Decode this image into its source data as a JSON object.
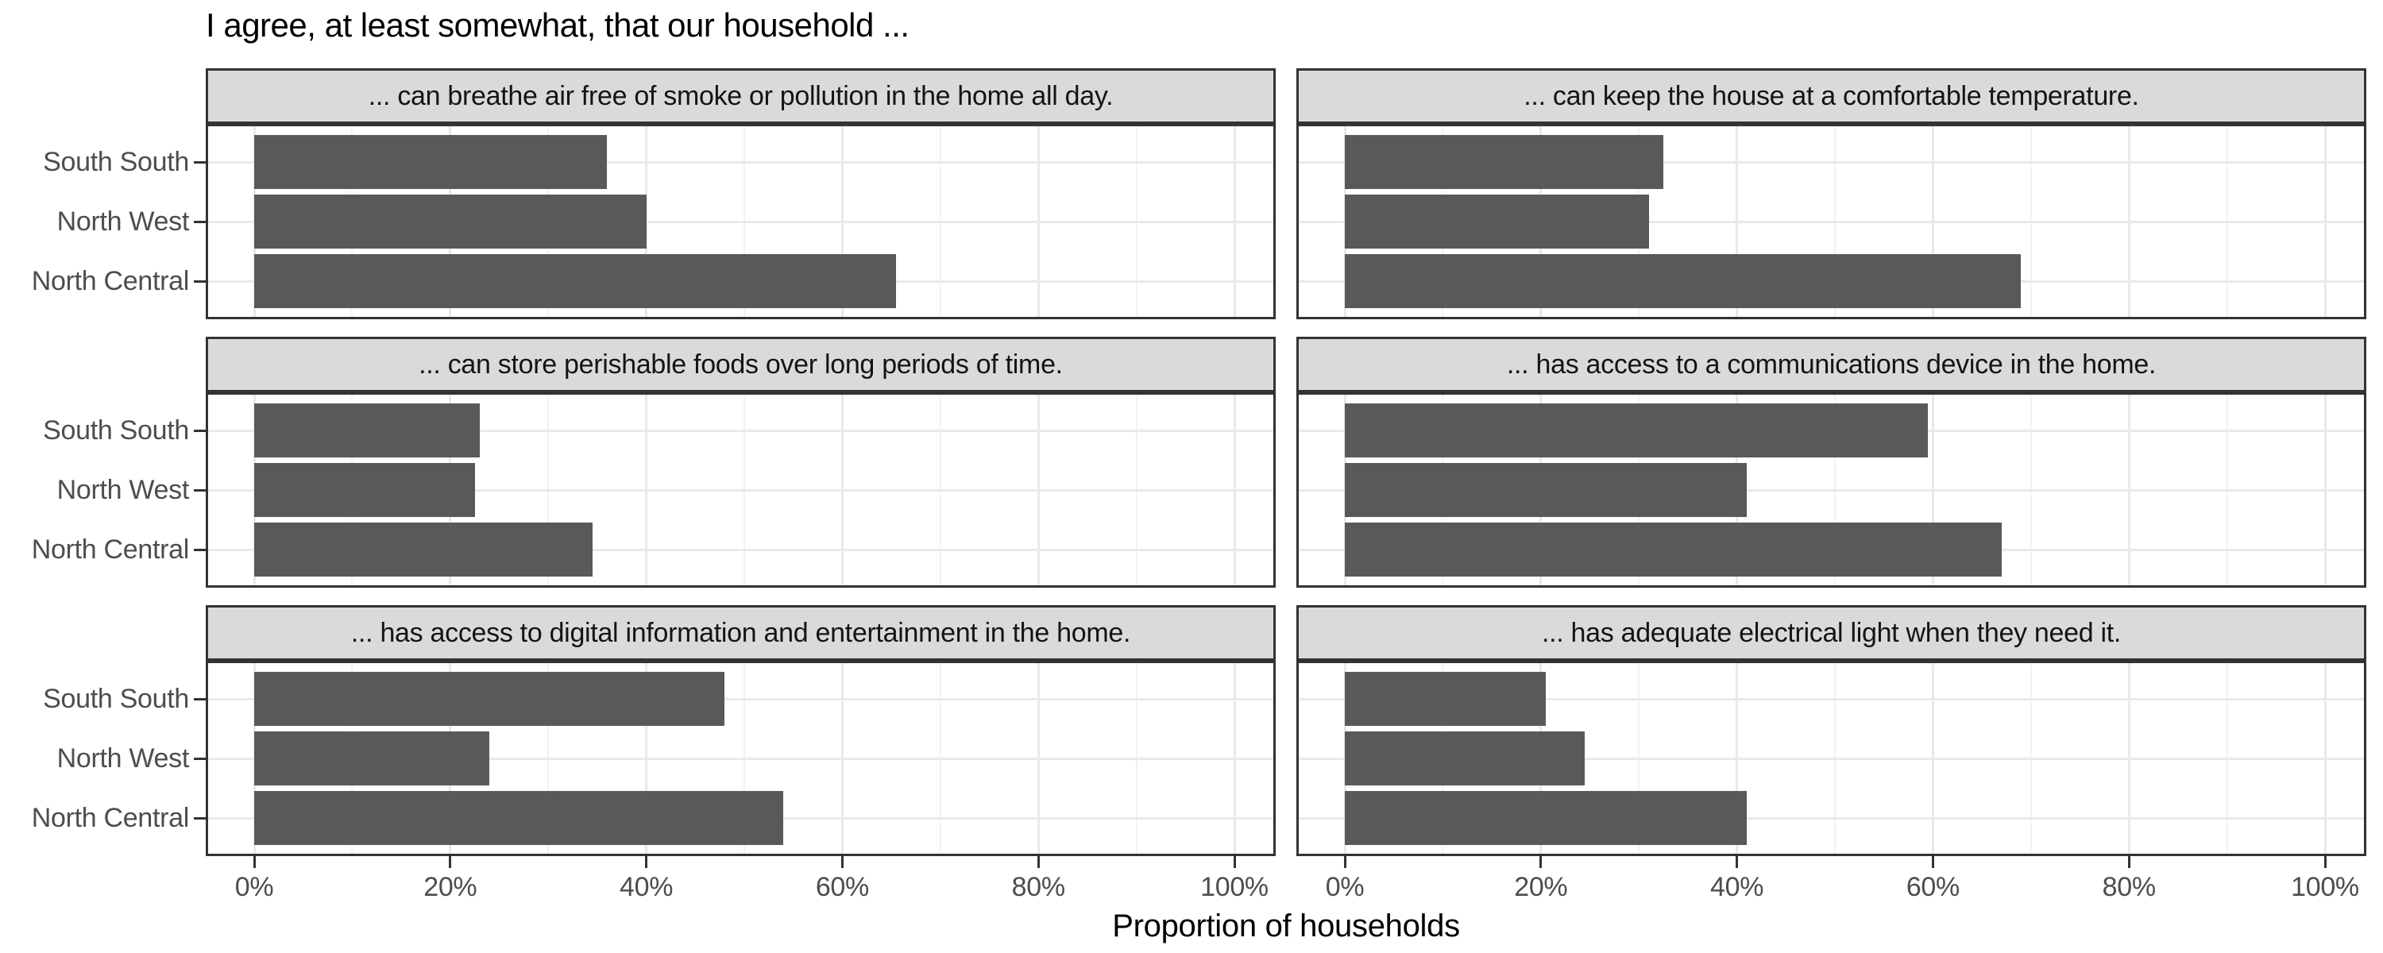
{
  "figure": {
    "title": "I agree, at least somewhat, that our household ...",
    "x_axis_title": "Proportion of households"
  },
  "chart_data": {
    "type": "bar",
    "orientation": "horizontal",
    "layout": "facet-grid-2-cols-3-rows",
    "title": "I agree, at least somewhat, that our household ...",
    "xlabel": "Proportion of households",
    "ylabel": "",
    "xlim": [
      0,
      100
    ],
    "x_tick_values": [
      0,
      20,
      40,
      60,
      80,
      100
    ],
    "x_ticks": [
      "0%",
      "20%",
      "40%",
      "60%",
      "80%",
      "100%"
    ],
    "grid": "vertical major 20% + minor 10%, horizontal major at category centers",
    "legend": "none",
    "categories": [
      "South South",
      "North West",
      "North Central"
    ],
    "panels": [
      {
        "label": "... can breathe air free of smoke or pollution in the home all day.",
        "values": [
          36,
          40,
          65.5
        ]
      },
      {
        "label": "... can keep the house at a comfortable temperature.",
        "values": [
          32.5,
          31,
          69
        ]
      },
      {
        "label": "... can store perishable foods over long periods of time.",
        "values": [
          23,
          22.5,
          34.5
        ]
      },
      {
        "label": "... has access to a communications device in the home.",
        "values": [
          59.5,
          41,
          67
        ]
      },
      {
        "label": "... has access to digital information and entertainment in the home.",
        "values": [
          48,
          24,
          54
        ]
      },
      {
        "label": "... has adequate electrical light when they need it.",
        "values": [
          20.5,
          24.5,
          41
        ]
      }
    ],
    "colors": {
      "bar": "#595959",
      "strip_background": "#DADADA",
      "panel_border": "#333333",
      "grid_major": "#E9E9E9",
      "grid_minor": "#F2F2F2",
      "axis_text": "#4D4D4D",
      "title_text": "#000000"
    }
  }
}
